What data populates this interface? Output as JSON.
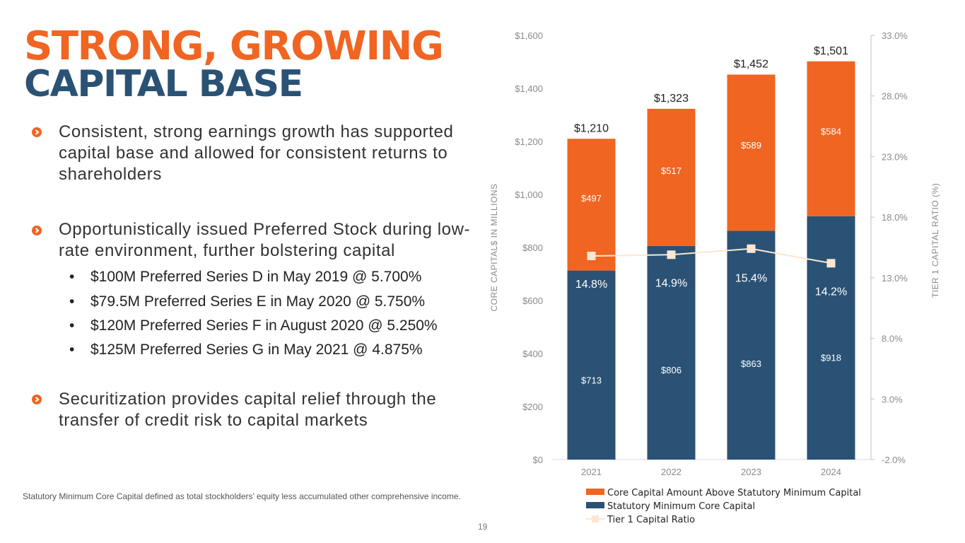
{
  "title": {
    "line1": "STRONG, GROWING",
    "line2": "CAPITAL BASE"
  },
  "bullets": [
    {
      "text": "Consistent, strong earnings growth has supported capital base and allowed for consistent returns to shareholders"
    },
    {
      "text": "Opportunistically issued Preferred Stock during low-rate environment, further bolstering capital",
      "subitems": [
        "$100M Preferred Series D in May 2019 @ 5.700%",
        "$79.5M Preferred Series E in May 2020 @ 5.750%",
        "$120M Preferred Series F in August 2020 @ 5.250%",
        "$125M Preferred Series G in May 2021 @ 4.875%"
      ]
    },
    {
      "text": "Securitization provides capital relief through the transfer of credit risk to capital markets"
    }
  ],
  "sub_bullet_glyph": "•",
  "footnote": "Statutory Minimum Core Capital defined as total stockholders’ equity less accumulated other comprehensive income.",
  "page_number": "19",
  "colors": {
    "orange": "#f06522",
    "navy": "#2a5275",
    "ratio_line": "#fbe6d2"
  },
  "chart_data": {
    "type": "bar",
    "stacked": true,
    "categories": [
      "2021",
      "2022",
      "2023",
      "2024"
    ],
    "series": [
      {
        "name": "Statutory Minimum Core Capital",
        "values": [
          713,
          806,
          863,
          918
        ],
        "labels": [
          "$713",
          "$806",
          "$863",
          "$918"
        ]
      },
      {
        "name": "Core Capital Amount Above Statutory Minimum Capital",
        "values": [
          497,
          517,
          589,
          584
        ],
        "labels": [
          "$497",
          "$517",
          "$589",
          "$584"
        ]
      }
    ],
    "totals": [
      1210,
      1323,
      1452,
      1501
    ],
    "total_labels": [
      "$1,210",
      "$1,323",
      "$1,452",
      "$1,501"
    ],
    "line_series": {
      "name": "Tier 1 Capital Ratio",
      "axis": "right",
      "values": [
        14.8,
        14.9,
        15.4,
        14.2
      ],
      "labels": [
        "14.8%",
        "14.9%",
        "15.4%",
        "14.2%"
      ]
    },
    "ylabel": "CORE CAPITAL$ IN MILLIONS",
    "y2label": "TIER 1 CAPITAL RATIO (%)",
    "ylim": [
      0,
      1600
    ],
    "y_ticks": [
      "$0",
      "$200",
      "$400",
      "$600",
      "$800",
      "$1,000",
      "$1,200",
      "$1,400",
      "$1,600"
    ],
    "y2lim": [
      -2,
      33
    ],
    "y2_ticks": [
      "-2.0%",
      "3.0%",
      "8.0%",
      "13.0%",
      "18.0%",
      "23.0%",
      "28.0%",
      "33.0%"
    ],
    "legend_position": "bottom",
    "legend": [
      "Core Capital Amount Above Statutory Minimum Capital",
      "Statutory Minimum Core Capital",
      "Tier 1 Capital Ratio"
    ]
  }
}
